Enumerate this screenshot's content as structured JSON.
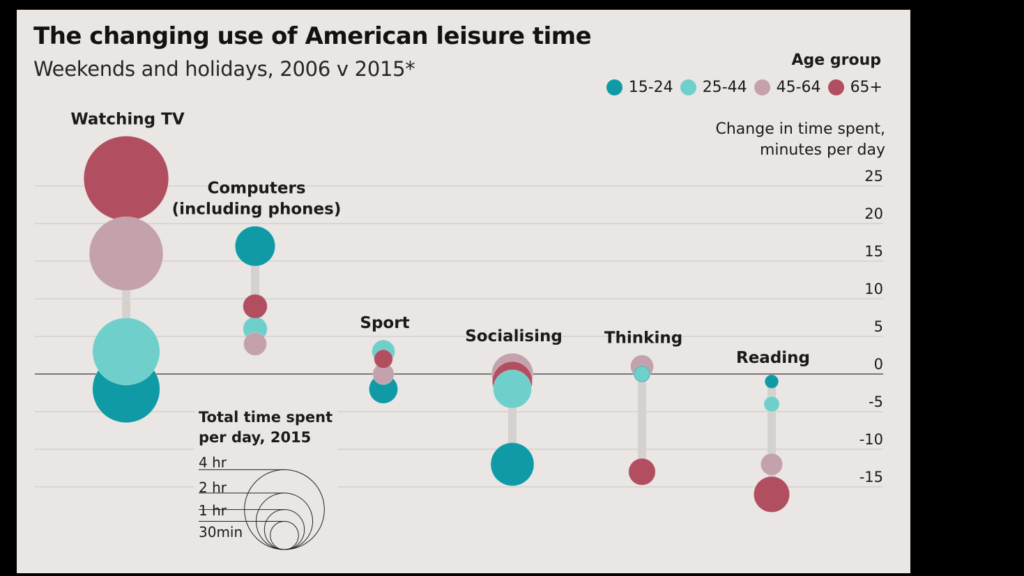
{
  "title": "The changing use of American leisure time",
  "subtitle": "Weekends and holidays, 2006 v 2015*",
  "legend": {
    "title": "Age group",
    "items": [
      {
        "label": "15-24",
        "color": "#0f9aa5"
      },
      {
        "label": "25-44",
        "color": "#6fcfcb"
      },
      {
        "label": "45-64",
        "color": "#c3a2ab"
      },
      {
        "label": "65+",
        "color": "#b14e60"
      }
    ]
  },
  "ylabel": {
    "line1": "Change in time spent,",
    "line2": "minutes per day"
  },
  "size_legend": {
    "title_line1": "Total time spent",
    "title_line2": "per day, 2015",
    "items": [
      {
        "label": "4 hr",
        "minutes": 240
      },
      {
        "label": "2 hr",
        "minutes": 120
      },
      {
        "label": "1 hr",
        "minutes": 60
      },
      {
        "label": "30min",
        "minutes": 30
      }
    ]
  },
  "chart_data": {
    "type": "scatter",
    "title": "The changing use of American leisure time",
    "subtitle": "Weekends and holidays, 2006 v 2015*",
    "ylabel": "Change in time spent, minutes per day",
    "ylim": [
      -17,
      26
    ],
    "yticks": [
      25,
      20,
      15,
      10,
      5,
      0,
      -5,
      -10,
      -15
    ],
    "grid": true,
    "legend_position": "top-right",
    "series_names": [
      "15-24",
      "25-44",
      "45-64",
      "65+"
    ],
    "categories": [
      {
        "name": "Watching TV",
        "label_lines": [
          "Watching TV"
        ],
        "points": [
          {
            "group": "15-24",
            "change": -2,
            "total_minutes": 170
          },
          {
            "group": "25-44",
            "change": 3,
            "total_minutes": 170
          },
          {
            "group": "45-64",
            "change": 16,
            "total_minutes": 205
          },
          {
            "group": "65+",
            "change": 26,
            "total_minutes": 270
          }
        ]
      },
      {
        "name": "Computers (including phones)",
        "label_lines": [
          "Computers",
          "(including phones)"
        ],
        "points": [
          {
            "group": "15-24",
            "change": 17,
            "total_minutes": 60
          },
          {
            "group": "25-44",
            "change": 6,
            "total_minutes": 22
          },
          {
            "group": "45-64",
            "change": 4,
            "total_minutes": 20
          },
          {
            "group": "65+",
            "change": 9,
            "total_minutes": 22
          }
        ]
      },
      {
        "name": "Sport",
        "label_lines": [
          "Sport"
        ],
        "points": [
          {
            "group": "15-24",
            "change": -2,
            "total_minutes": 31
          },
          {
            "group": "25-44",
            "change": 3,
            "total_minutes": 20
          },
          {
            "group": "45-64",
            "change": 0,
            "total_minutes": 17
          },
          {
            "group": "65+",
            "change": 2,
            "total_minutes": 13
          }
        ]
      },
      {
        "name": "Socialising",
        "label_lines": [
          "Socialising"
        ],
        "points": [
          {
            "group": "15-24",
            "change": -12,
            "total_minutes": 70
          },
          {
            "group": "25-44",
            "change": -2,
            "total_minutes": 55
          },
          {
            "group": "45-64",
            "change": 0,
            "total_minutes": 65
          },
          {
            "group": "65+",
            "change": -1,
            "total_minutes": 60
          }
        ]
      },
      {
        "name": "Thinking",
        "label_lines": [
          "Thinking"
        ],
        "points": [
          {
            "group": "15-24",
            "change": 0,
            "total_minutes": 10
          },
          {
            "group": "25-44",
            "change": 0,
            "total_minutes": 8
          },
          {
            "group": "45-64",
            "change": 1,
            "total_minutes": 20
          },
          {
            "group": "65+",
            "change": -13,
            "total_minutes": 27
          }
        ]
      },
      {
        "name": "Reading",
        "label_lines": [
          "Reading"
        ],
        "points": [
          {
            "group": "15-24",
            "change": -1,
            "total_minutes": 7
          },
          {
            "group": "25-44",
            "change": -4,
            "total_minutes": 9
          },
          {
            "group": "45-64",
            "change": -12,
            "total_minutes": 18
          },
          {
            "group": "65+",
            "change": -16,
            "total_minutes": 48
          }
        ]
      }
    ]
  }
}
